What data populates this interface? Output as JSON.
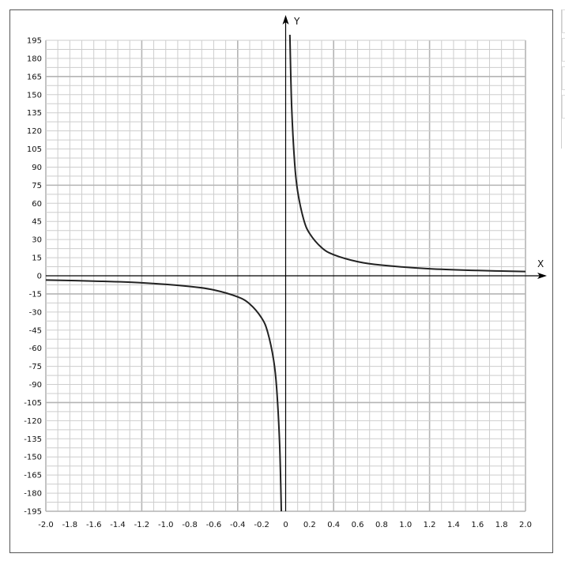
{
  "chart_data": {
    "type": "line",
    "title": "",
    "xlabel": "X",
    "ylabel": "Y",
    "xlim": [
      -2.0,
      2.0
    ],
    "ylim": [
      -195,
      195
    ],
    "x_ticks": [
      -2.0,
      -1.8,
      -1.6,
      -1.4,
      -1.2,
      -1.0,
      -0.8,
      -0.6,
      -0.4,
      -0.2,
      0,
      0.2,
      0.4,
      0.6,
      0.8,
      1.0,
      1.2,
      1.4,
      1.6,
      1.8,
      2.0
    ],
    "x_tick_labels": [
      "-2.0",
      "-1.8",
      "-1.6",
      "-1.4",
      "-1.2",
      "-1.0",
      "-0.8",
      "-0.6",
      "-0.4",
      "-0.2",
      "0",
      "0.2",
      "0.4",
      "0.6",
      "0.8",
      "1.0",
      "1.2",
      "1.4",
      "1.6",
      "1.8",
      "2.0"
    ],
    "y_ticks": [
      195,
      180,
      165,
      150,
      135,
      120,
      105,
      90,
      75,
      60,
      45,
      30,
      15,
      0,
      -15,
      -30,
      -45,
      -60,
      -75,
      -90,
      -105,
      -120,
      -135,
      -150,
      -165,
      -180,
      -195
    ],
    "y_tick_labels": [
      "195",
      "180",
      "165",
      "150",
      "135",
      "120",
      "105",
      "90",
      "75",
      "60",
      "45",
      "30",
      "15",
      "0",
      "-15",
      "-30",
      "-45",
      "-60",
      "-75",
      "-90",
      "-105",
      "-120",
      "-135",
      "-150",
      "-165",
      "-180",
      "-195"
    ],
    "grid": true,
    "series": [
      {
        "x": [
          -2.0,
          -1.6,
          -1.2,
          -0.8,
          -0.6,
          -0.4,
          -0.3,
          -0.2,
          -0.15,
          -0.1,
          -0.075,
          -0.05,
          -0.035
        ],
        "y": [
          -3.5,
          -4.4,
          -5.8,
          -8.8,
          -11.7,
          -17.5,
          -23.3,
          -35,
          -46.7,
          -70,
          -93.3,
          -140,
          -200
        ],
        "color": "#222222"
      },
      {
        "x": [
          0.035,
          0.05,
          0.075,
          0.1,
          0.15,
          0.2,
          0.3,
          0.4,
          0.6,
          0.8,
          1.2,
          1.6,
          2.0
        ],
        "y": [
          200,
          140,
          93.3,
          70,
          46.7,
          35,
          23.3,
          17.5,
          11.7,
          8.8,
          5.8,
          4.4,
          3.5
        ],
        "color": "#222222"
      }
    ]
  }
}
